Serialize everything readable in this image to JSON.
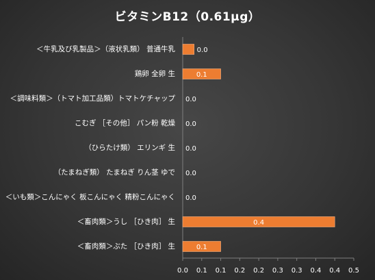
{
  "chart_data": {
    "type": "bar",
    "orientation": "horizontal",
    "title": "ビタミンB12（0.61μg）",
    "categories": [
      "＜牛乳及び乳製品＞（液状乳類） 普通牛乳",
      "鶏卵 全卵 生",
      "＜調味料類＞（トマト加工品類）トマトケチャップ",
      "こむぎ ［その他］ パン粉 乾燥",
      "（ひらたけ類） エリンギ 生",
      "（たまねぎ類） たまねぎ りん茎 ゆで",
      "＜いも類＞こんにゃく 板こんにゃく 精粉こんにゃく",
      "＜畜肉類＞うし ［ひき肉］ 生",
      "＜畜肉類＞ぶた ［ひき肉］ 生"
    ],
    "values": [
      0.03,
      0.1,
      0.0,
      0.0,
      0.0,
      0.0,
      0.0,
      0.4,
      0.1
    ],
    "data_labels": [
      "0.0",
      "0.1",
      "0.0",
      "0.0",
      "0.0",
      "0.0",
      "0.0",
      "0.4",
      "0.1"
    ],
    "x_ticks": [
      "0.0",
      "0.1",
      "0.1",
      "0.2",
      "0.2",
      "0.3",
      "0.3",
      "0.4",
      "0.4",
      "0.5"
    ],
    "xlim": [
      0,
      0.45
    ],
    "grid": false,
    "legend": "none",
    "colors": {
      "bar": "#ED7D31",
      "text": "#FFFFFF",
      "axis": "#7F7F7F"
    }
  }
}
